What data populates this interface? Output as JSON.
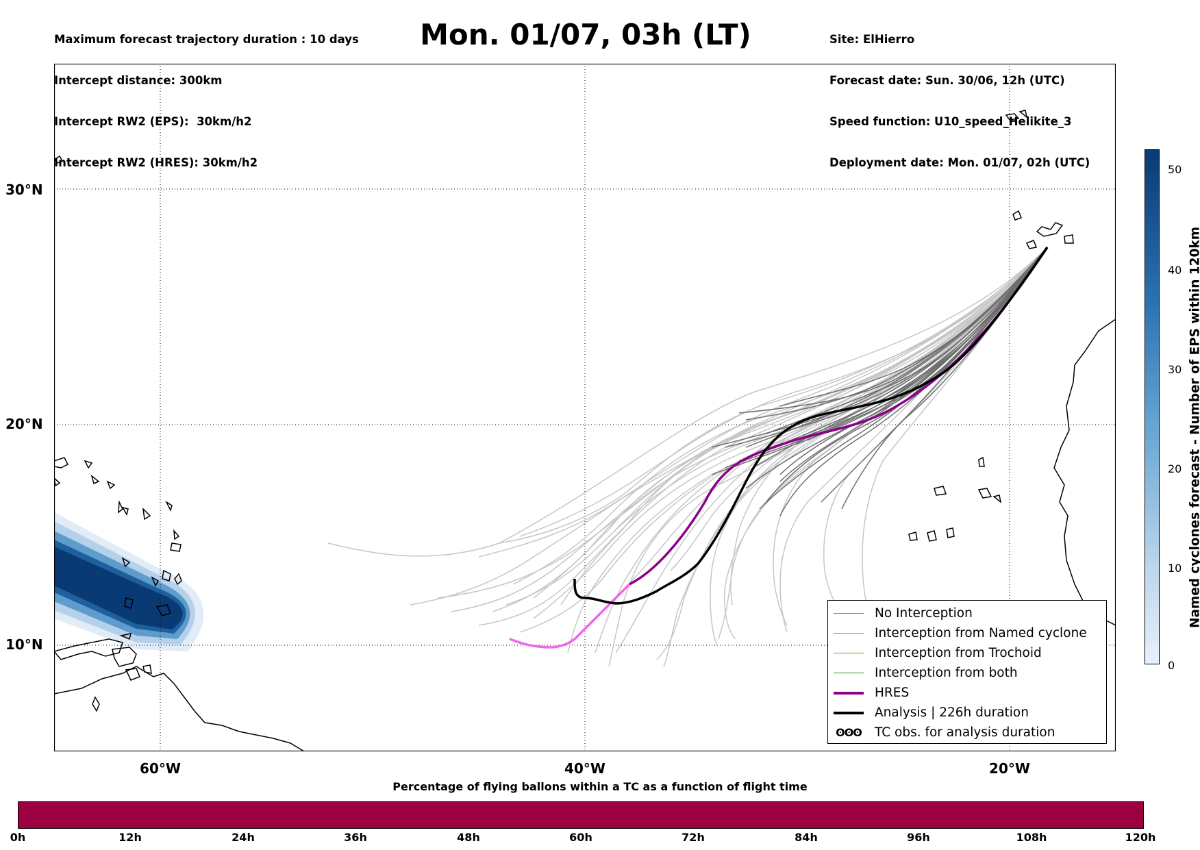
{
  "header": {
    "left_lines": [
      "Maximum forecast trajectory duration : 10 days",
      "Intercept distance: 300km",
      "Intercept RW2 (EPS):  30km/h2",
      "Intercept RW2 (HRES): 30km/h2"
    ],
    "title": "Mon. 01/07, 03h (LT)",
    "right_lines": [
      "Site: ElHierro",
      "Forecast date: Sun. 30/06, 12h (UTC)",
      "Speed function: U10_speed_Helikite_3",
      "Deployment date: Mon. 01/07, 02h (UTC)"
    ]
  },
  "map": {
    "lat_labels": [
      "30°N",
      "20°N",
      "10°N"
    ],
    "lon_labels": [
      "60°W",
      "40°W",
      "20°W"
    ],
    "gridlines": "dotted"
  },
  "legend": {
    "items": [
      {
        "label": "No Interception",
        "color": "#808080",
        "style": "line-thin"
      },
      {
        "label": "Interception from Named cyclone",
        "color": "#e3622c",
        "style": "line-thin"
      },
      {
        "label": "Interception from Trochoid",
        "color": "#8c8c2a",
        "style": "line-thin"
      },
      {
        "label": "Interception from both",
        "color": "#2e8b2e",
        "style": "line-thin"
      },
      {
        "label": "HRES",
        "color": "#8b008b",
        "style": "line-thick"
      },
      {
        "label": "Analysis | 226h duration",
        "color": "#000000",
        "style": "line-thick"
      },
      {
        "label": "TC obs. for analysis duration",
        "color": "#000000",
        "style": "symbol",
        "symbol": "ʘʘʘ"
      }
    ]
  },
  "colorbar": {
    "label": "Named cyclones forecast - Number of EPS within 120km",
    "ticks": [
      "50",
      "40",
      "30",
      "20",
      "10",
      "0"
    ],
    "colors": [
      "#e8f1fa",
      "#0a3a74"
    ]
  },
  "bottom_bar": {
    "title": "Percentage of flying ballons within a TC as a function of flight time",
    "ticks": [
      "0h",
      "12h",
      "24h",
      "36h",
      "48h",
      "60h",
      "72h",
      "84h",
      "96h",
      "108h",
      "120h"
    ],
    "color": "#9b0040"
  }
}
